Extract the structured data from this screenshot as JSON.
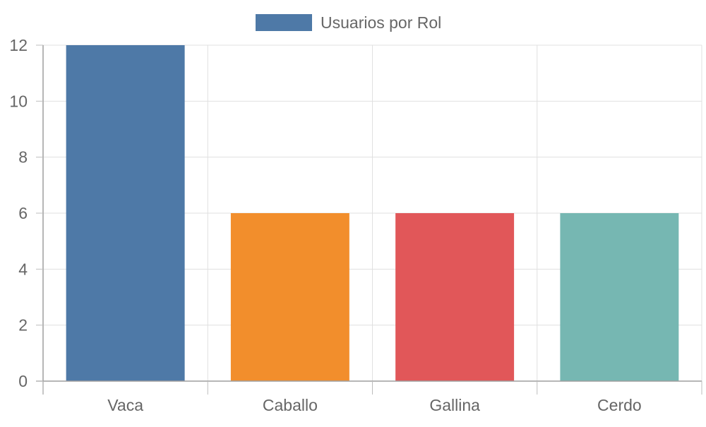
{
  "chart_data": {
    "type": "bar",
    "categories": [
      "Vaca",
      "Caballo",
      "Gallina",
      "Cerdo"
    ],
    "series": [
      {
        "name": "Usuarios por Rol",
        "values": [
          12,
          6,
          6,
          6
        ]
      }
    ],
    "bar_colors": [
      "#4e79a7",
      "#f28e2c",
      "#e15759",
      "#76b7b2"
    ],
    "legend_color": "#4e79a7",
    "ylim": [
      0,
      12
    ],
    "yticks": [
      0,
      2,
      4,
      6,
      8,
      10,
      12
    ],
    "grid": true,
    "legend_position": "top-center",
    "title": "",
    "xlabel": "",
    "ylabel": ""
  }
}
